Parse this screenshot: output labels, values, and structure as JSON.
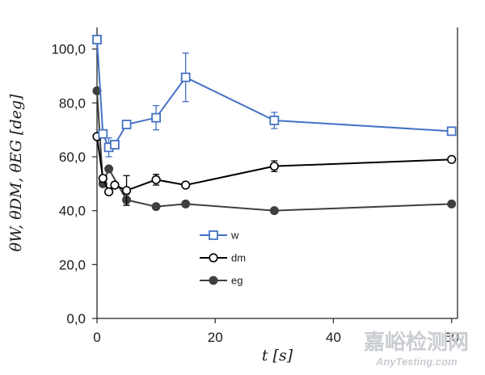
{
  "chart_data": {
    "type": "line",
    "title": "",
    "xlabel": "t [s]",
    "ylabel": "θW, θDM, θEG [deg]",
    "xlim": [
      0,
      61
    ],
    "ylim": [
      0,
      108
    ],
    "x_ticks": [
      0,
      20,
      40,
      60
    ],
    "x_tick_labels": [
      "0",
      "20",
      "40",
      "60"
    ],
    "y_ticks": [
      0,
      20,
      40,
      60,
      80,
      100
    ],
    "y_tick_labels": [
      "0,0",
      "20,0",
      "40,0",
      "60,0",
      "80,0",
      "100,0"
    ],
    "grid": false,
    "legend_position": "center",
    "series": [
      {
        "name": "w",
        "color": "#4472c4",
        "marker": "square-open",
        "x": [
          0,
          1,
          2,
          3,
          5,
          10,
          15,
          30,
          60
        ],
        "y": [
          103.5,
          68.5,
          63.5,
          64.5,
          72.0,
          74.5,
          89.5,
          73.5,
          69.5
        ],
        "error": [
          0,
          0,
          3.5,
          1.5,
          0,
          4.5,
          9.0,
          3.0,
          0
        ]
      },
      {
        "name": "dm",
        "color": "#000000",
        "marker": "circle-open",
        "x": [
          0,
          1,
          2,
          3,
          5,
          10,
          15,
          30,
          60
        ],
        "y": [
          67.5,
          52.0,
          47.0,
          49.5,
          47.5,
          51.5,
          49.5,
          56.5,
          59.0
        ],
        "error": [
          0,
          0,
          0,
          0,
          5.5,
          2.0,
          0,
          2.0,
          0
        ]
      },
      {
        "name": "eg",
        "color": "#3f3f3f",
        "marker": "circle-filled",
        "x": [
          0,
          1,
          2,
          5,
          10,
          15,
          30,
          60
        ],
        "y": [
          84.5,
          50.0,
          55.5,
          44.0,
          41.5,
          42.5,
          40.0,
          42.5
        ],
        "error": [
          0,
          0,
          0,
          2.0,
          0,
          0,
          0,
          0
        ]
      }
    ]
  },
  "watermark": {
    "cn": "嘉峪检测网",
    "en": "AnyTesting.com",
    "color": "#c9ccd1"
  }
}
